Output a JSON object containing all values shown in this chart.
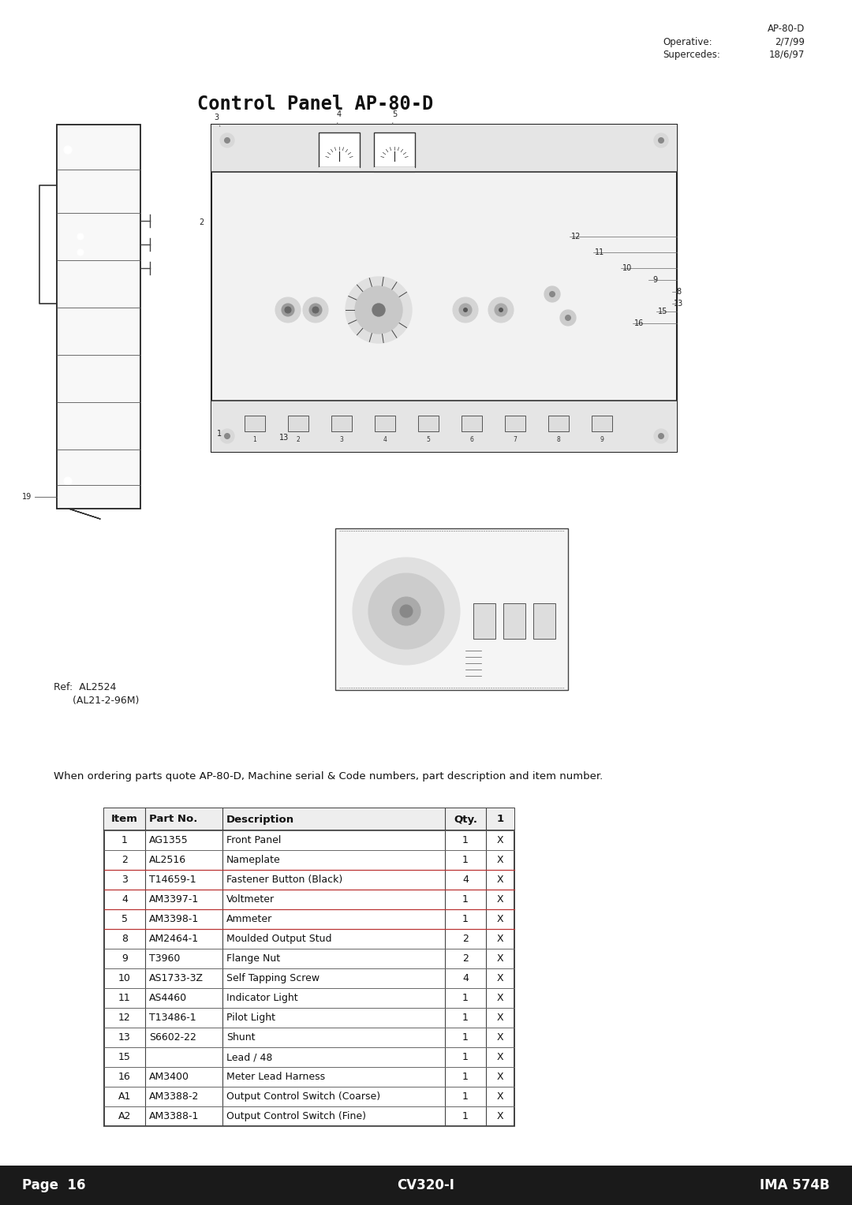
{
  "page_bg": "#ffffff",
  "title": "Control Panel AP-80-D",
  "header_right": {
    "line1": "AP-80-D",
    "line2_label": "Operative:",
    "line2_value": "2/7/99",
    "line3_label": "Supercedes:",
    "line3_value": "18/6/97"
  },
  "ordering_note": "When ordering parts quote AP-80-D, Machine serial & Code numbers, part description and item number.",
  "table_headers": [
    "Item",
    "Part No.",
    "Description",
    "Qty.",
    "1"
  ],
  "table_rows": [
    [
      "1",
      "AG1355",
      "Front Panel",
      "1",
      "X"
    ],
    [
      "2",
      "AL2516",
      "Nameplate",
      "1",
      "X"
    ],
    [
      "3",
      "T14659-1",
      "Fastener Button (Black)",
      "4",
      "X"
    ],
    [
      "4",
      "AM3397-1",
      "Voltmeter",
      "1",
      "X"
    ],
    [
      "5",
      "AM3398-1",
      "Ammeter",
      "1",
      "X"
    ],
    [
      "8",
      "AM2464-1",
      "Moulded Output Stud",
      "2",
      "X"
    ],
    [
      "9",
      "T3960",
      "Flange Nut",
      "2",
      "X"
    ],
    [
      "10",
      "AS1733-3Z",
      "Self Tapping Screw",
      "4",
      "X"
    ],
    [
      "11",
      "AS4460",
      "Indicator Light",
      "1",
      "X"
    ],
    [
      "12",
      "T13486-1",
      "Pilot Light",
      "1",
      "X"
    ],
    [
      "13",
      "S6602-22",
      "Shunt",
      "1",
      "X"
    ],
    [
      "15",
      "",
      "Lead / 48",
      "1",
      "X"
    ],
    [
      "16",
      "AM3400",
      "Meter Lead Harness",
      "1",
      "X"
    ],
    [
      "A1",
      "AM3388-2",
      "Output Control Switch (Coarse)",
      "1",
      "X"
    ],
    [
      "A2",
      "AM3388-1",
      "Output Control Switch (Fine)",
      "1",
      "X"
    ]
  ],
  "footer_bg": "#1a1a1a",
  "footer_left": "Page  16",
  "footer_center": "CV320-I",
  "footer_right": "IMA 574B",
  "footer_text_color": "#ffffff",
  "ref_line1": "Ref:  AL2524",
  "ref_line2": "      (AL21-2-96M)"
}
